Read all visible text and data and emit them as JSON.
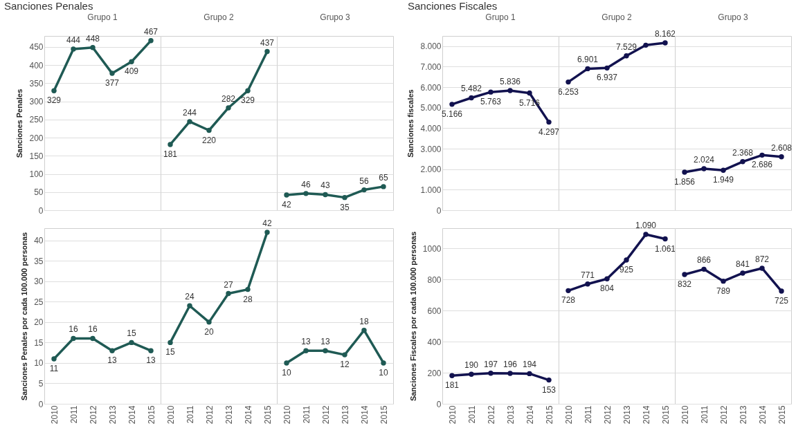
{
  "chart_data": [
    {
      "type": "line",
      "title": "Grupo 1",
      "annotations": [
        "Sanciones Penales"
      ],
      "ylabel": "Sanciones Penales",
      "categories": [
        "2010",
        "2011",
        "2012",
        "2013",
        "2014",
        "2015"
      ],
      "ylim": [
        0,
        480
      ],
      "yticks": [
        0,
        50,
        100,
        150,
        200,
        250,
        300,
        350,
        400,
        450
      ],
      "grid": "y",
      "marker": "circle",
      "line_style": "solid",
      "tick_labels": "y",
      "series": [
        {
          "color": "#1f5a54",
          "values": [
            329,
            444,
            448,
            377,
            409,
            467
          ],
          "value_labels": [
            "329",
            "444",
            "448",
            "377",
            "409",
            "467"
          ]
        }
      ]
    },
    {
      "type": "line",
      "title": "Grupo 2",
      "categories": [
        "2010",
        "2011",
        "2012",
        "2013",
        "2014",
        "2015"
      ],
      "ylim": [
        0,
        480
      ],
      "yticks": [
        0,
        50,
        100,
        150,
        200,
        250,
        300,
        350,
        400,
        450
      ],
      "grid": "y",
      "marker": "circle",
      "line_style": "solid",
      "tick_labels": false,
      "series": [
        {
          "color": "#1f5a54",
          "values": [
            181,
            244,
            220,
            282,
            329,
            437
          ],
          "value_labels": [
            "181",
            "244",
            "220",
            "282",
            "329",
            "437"
          ]
        }
      ]
    },
    {
      "type": "line",
      "title": "Grupo 3",
      "categories": [
        "2010",
        "2011",
        "2012",
        "2013",
        "2014",
        "2015"
      ],
      "ylim": [
        0,
        480
      ],
      "yticks": [
        0,
        50,
        100,
        150,
        200,
        250,
        300,
        350,
        400,
        450
      ],
      "grid": "y",
      "marker": "circle",
      "line_style": "solid",
      "tick_labels": false,
      "series": [
        {
          "color": "#1f5a54",
          "values": [
            42,
            46,
            43,
            35,
            56,
            65
          ],
          "value_labels": [
            "42",
            "46",
            "43",
            "35",
            "56",
            "65"
          ]
        }
      ]
    },
    {
      "type": "line",
      "ylabel": "Sanciones Penales por cada 100.000 personas",
      "categories": [
        "2010",
        "2011",
        "2012",
        "2013",
        "2014",
        "2015"
      ],
      "ylim": [
        0,
        43
      ],
      "yticks": [
        0,
        5,
        10,
        15,
        20,
        25,
        30,
        35,
        40
      ],
      "grid": "y",
      "marker": "circle",
      "line_style": "solid",
      "series": [
        {
          "color": "#1f5a54",
          "values": [
            11,
            16,
            16,
            13,
            15,
            13
          ],
          "value_labels": [
            "11",
            "16",
            "16",
            "13",
            "15",
            "13"
          ]
        }
      ]
    },
    {
      "type": "line",
      "categories": [
        "2010",
        "2011",
        "2012",
        "2013",
        "2014",
        "2015"
      ],
      "ylim": [
        0,
        43
      ],
      "yticks": [
        0,
        5,
        10,
        15,
        20,
        25,
        30,
        35,
        40
      ],
      "grid": "y",
      "marker": "circle",
      "line_style": "solid",
      "tick_labels": "x",
      "series": [
        {
          "color": "#1f5a54",
          "values": [
            15,
            24,
            20,
            27,
            28,
            42
          ],
          "value_labels": [
            "15",
            "24",
            "20",
            "27",
            "28",
            "42"
          ]
        }
      ]
    },
    {
      "type": "line",
      "categories": [
        "2010",
        "2011",
        "2012",
        "2013",
        "2014",
        "2015"
      ],
      "ylim": [
        0,
        43
      ],
      "yticks": [
        0,
        5,
        10,
        15,
        20,
        25,
        30,
        35,
        40
      ],
      "grid": "y",
      "marker": "circle",
      "line_style": "solid",
      "tick_labels": "x",
      "series": [
        {
          "color": "#1f5a54",
          "values": [
            10,
            13,
            13,
            12,
            18,
            10
          ],
          "value_labels": [
            "10",
            "13",
            "13",
            "12",
            "18",
            "10"
          ]
        }
      ]
    },
    {
      "type": "line",
      "title": "Grupo 1",
      "annotations": [
        "Sanciones Fiscales"
      ],
      "ylabel": "Sanciones fiscales",
      "categories": [
        "2010",
        "2011",
        "2012",
        "2013",
        "2014",
        "2015"
      ],
      "ylim": [
        0,
        8500
      ],
      "yticks": [
        0,
        {
          "value": 1000,
          "label": "1.000"
        },
        {
          "value": 2000,
          "label": "2.000"
        },
        {
          "value": 3000,
          "label": "3.000"
        },
        {
          "value": 4000,
          "label": "4.000"
        },
        {
          "value": 5000,
          "label": "5.000"
        },
        {
          "value": 6000,
          "label": "6.000"
        },
        {
          "value": 7000,
          "label": "7.000"
        },
        {
          "value": 8000,
          "label": "8.000"
        }
      ],
      "grid": "y",
      "marker": "circle",
      "line_style": "solid",
      "tick_labels": "y",
      "series": [
        {
          "color": "#12124f",
          "values": [
            5166,
            5482,
            5763,
            5836,
            5716,
            4297
          ],
          "value_labels": [
            "5.166",
            "5.482",
            "5.763",
            "5.836",
            "5.716",
            "4.297"
          ]
        }
      ]
    },
    {
      "type": "line",
      "title": "Grupo 2",
      "categories": [
        "2010",
        "2011",
        "2012",
        "2013",
        "2014",
        "2015"
      ],
      "ylim": [
        0,
        8500
      ],
      "yticks": [
        0,
        1000,
        2000,
        3000,
        4000,
        5000,
        6000,
        7000,
        8000
      ],
      "grid": "y",
      "marker": "circle",
      "line_style": "solid",
      "tick_labels": false,
      "series": [
        {
          "color": "#12124f",
          "values": [
            6253,
            6901,
            6937,
            7529,
            8050,
            8162
          ],
          "value_labels": [
            "6.253",
            "6.901",
            "6.937",
            "7.529",
            null,
            "8.162"
          ]
        }
      ]
    },
    {
      "type": "line",
      "title": "Grupo 3",
      "categories": [
        "2010",
        "2011",
        "2012",
        "2013",
        "2014",
        "2015"
      ],
      "ylim": [
        0,
        8500
      ],
      "yticks": [
        0,
        1000,
        2000,
        3000,
        4000,
        5000,
        6000,
        7000,
        8000
      ],
      "grid": "y",
      "marker": "circle",
      "line_style": "solid",
      "tick_labels": false,
      "series": [
        {
          "color": "#12124f",
          "values": [
            1856,
            2024,
            1949,
            2368,
            2686,
            2608
          ],
          "value_labels": [
            "1.856",
            "2.024",
            "1.949",
            "2.368",
            "2.686",
            "2.608"
          ]
        }
      ]
    },
    {
      "type": "line",
      "ylabel": "Sanciones Fiscales por cada 100.000 personas",
      "categories": [
        "2010",
        "2011",
        "2012",
        "2013",
        "2014",
        "2015"
      ],
      "ylim": [
        0,
        1130
      ],
      "yticks": [
        0,
        200,
        400,
        600,
        800,
        1000
      ],
      "grid": "y",
      "marker": "circle",
      "line_style": "solid",
      "series": [
        {
          "color": "#12124f",
          "values": [
            181,
            190,
            197,
            196,
            194,
            153
          ],
          "value_labels": [
            "181",
            "190",
            "197",
            "196",
            "194",
            "153"
          ]
        }
      ]
    },
    {
      "type": "line",
      "categories": [
        "2010",
        "2011",
        "2012",
        "2013",
        "2014",
        "2015"
      ],
      "ylim": [
        0,
        1130
      ],
      "yticks": [
        0,
        200,
        400,
        600,
        800,
        1000
      ],
      "grid": "y",
      "marker": "circle",
      "line_style": "solid",
      "tick_labels": "x",
      "series": [
        {
          "color": "#12124f",
          "values": [
            728,
            771,
            804,
            925,
            1090,
            1061
          ],
          "value_labels": [
            "728",
            "771",
            "804",
            "925",
            "1.090",
            "1.061"
          ]
        }
      ]
    },
    {
      "type": "line",
      "categories": [
        "2010",
        "2011",
        "2012",
        "2013",
        "2014",
        "2015"
      ],
      "ylim": [
        0,
        1130
      ],
      "yticks": [
        0,
        200,
        400,
        600,
        800,
        1000
      ],
      "grid": "y",
      "marker": "circle",
      "line_style": "solid",
      "tick_labels": "x",
      "series": [
        {
          "color": "#12124f",
          "values": [
            832,
            866,
            789,
            841,
            872,
            725
          ],
          "value_labels": [
            "832",
            "866",
            "789",
            "841",
            "872",
            "725"
          ]
        }
      ]
    }
  ]
}
